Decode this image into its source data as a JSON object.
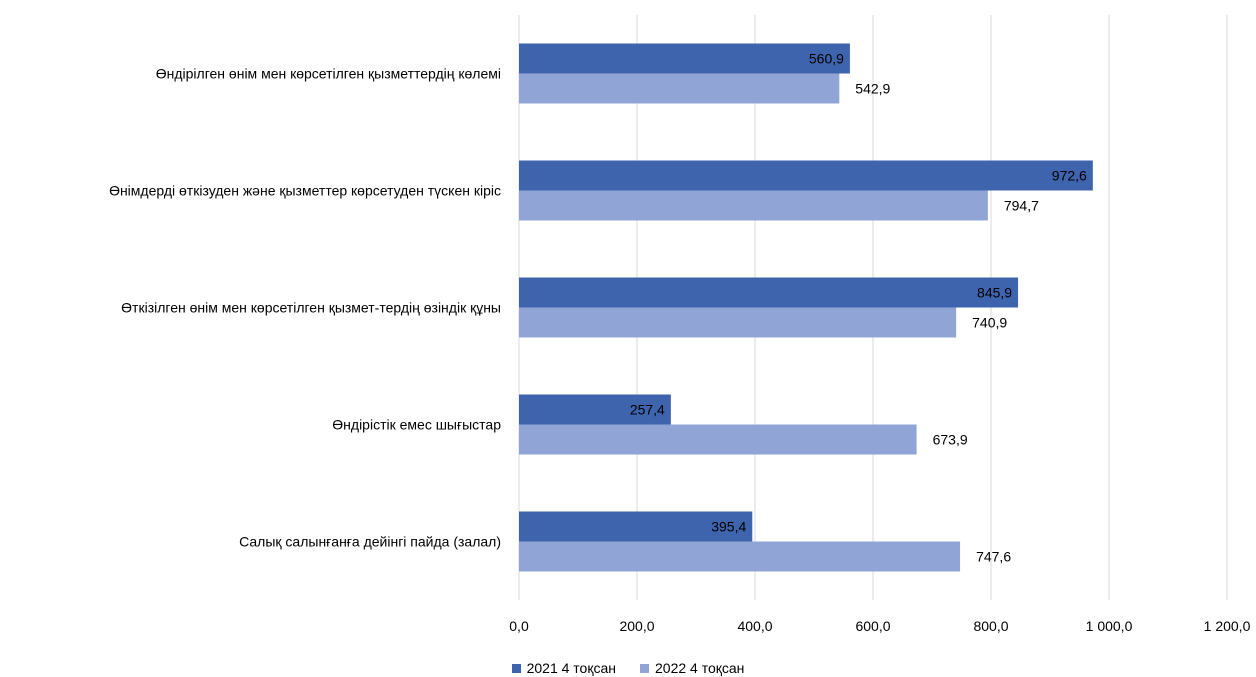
{
  "chart_data": {
    "type": "bar",
    "orientation": "horizontal",
    "categories": [
      "Өндірілген өнім мен көрсетілген қызметтердің көлемі",
      "Өнімдерді  өткізуден және қызметтер көрсетуден түскен кіріс",
      "Өткізілген өнім мен көрсетілген қызмет-тердің өзіндік құны",
      "Өндірістік емес шығыстар",
      "Салық салынғанға дейінгі пайда (залал)"
    ],
    "series": [
      {
        "name": "2021 4 тоқсан",
        "color": "#3f64ae",
        "values": [
          560.9,
          972.6,
          845.9,
          257.4,
          395.4
        ],
        "labels": [
          "560,9",
          "972,6",
          "845,9",
          "257,4",
          "395,4"
        ]
      },
      {
        "name": "2022 4 тоқсан",
        "color": "#90a5d6",
        "values": [
          542.9,
          794.7,
          740.9,
          673.9,
          747.6
        ],
        "labels": [
          "542,9",
          "794,7",
          "740,9",
          "673,9",
          "747,6"
        ]
      }
    ],
    "xlim": [
      0,
      1200
    ],
    "xticks": [
      0,
      200,
      400,
      600,
      800,
      1000,
      1200
    ],
    "xtick_labels": [
      "0,0",
      "200,0",
      "400,0",
      "600,0",
      "800,0",
      "1 000,0",
      "1 200,0"
    ],
    "grid": true,
    "legend": "bottom",
    "title": "",
    "xlabel": "",
    "ylabel": ""
  }
}
